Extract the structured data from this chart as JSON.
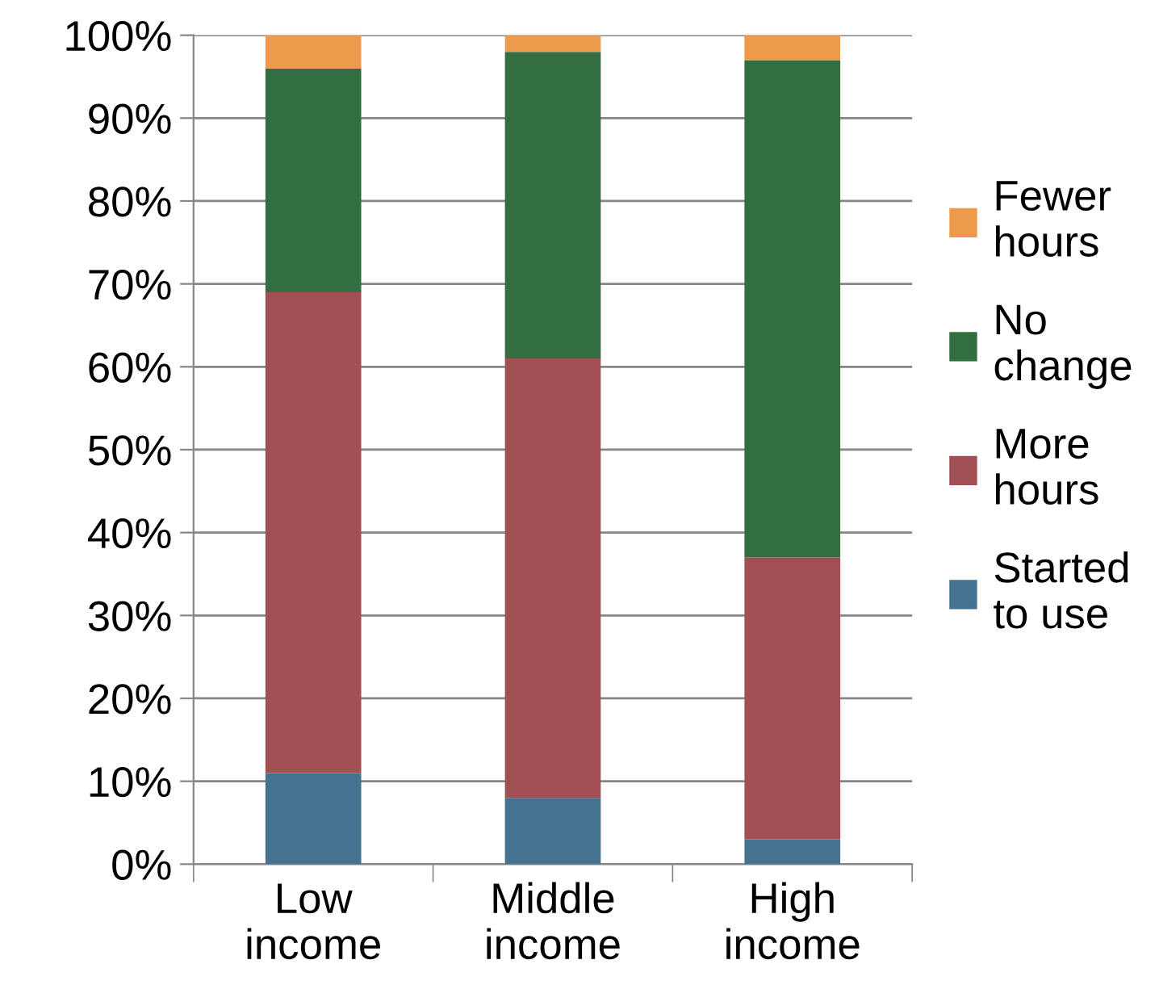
{
  "chart_data": {
    "type": "bar",
    "stacked": true,
    "categories": [
      "Low\nincome",
      "Middle\nincome",
      "High\nincome"
    ],
    "series": [
      {
        "name": "Started\nto use",
        "color": "#44728f",
        "values": [
          11,
          8,
          3
        ]
      },
      {
        "name": "More\nhours",
        "color": "#a05052",
        "values": [
          58,
          53,
          34
        ]
      },
      {
        "name": "No\nchange",
        "color": "#336e41",
        "values": [
          27,
          37,
          60
        ]
      },
      {
        "name": "Fewer\nhours",
        "color": "#ed9a4c",
        "values": [
          4,
          2,
          3
        ]
      }
    ],
    "ylim": [
      0,
      100
    ],
    "yticks": [
      {
        "value": 0,
        "label": "0%"
      },
      {
        "value": 10,
        "label": "10%"
      },
      {
        "value": 20,
        "label": "20%"
      },
      {
        "value": 30,
        "label": "30%"
      },
      {
        "value": 40,
        "label": "40%"
      },
      {
        "value": 50,
        "label": "50%"
      },
      {
        "value": 60,
        "label": "60%"
      },
      {
        "value": 70,
        "label": "70%"
      },
      {
        "value": 80,
        "label": "80%"
      },
      {
        "value": 90,
        "label": "90%"
      },
      {
        "value": 100,
        "label": "100%"
      }
    ],
    "grid": "y",
    "legend": "right"
  }
}
